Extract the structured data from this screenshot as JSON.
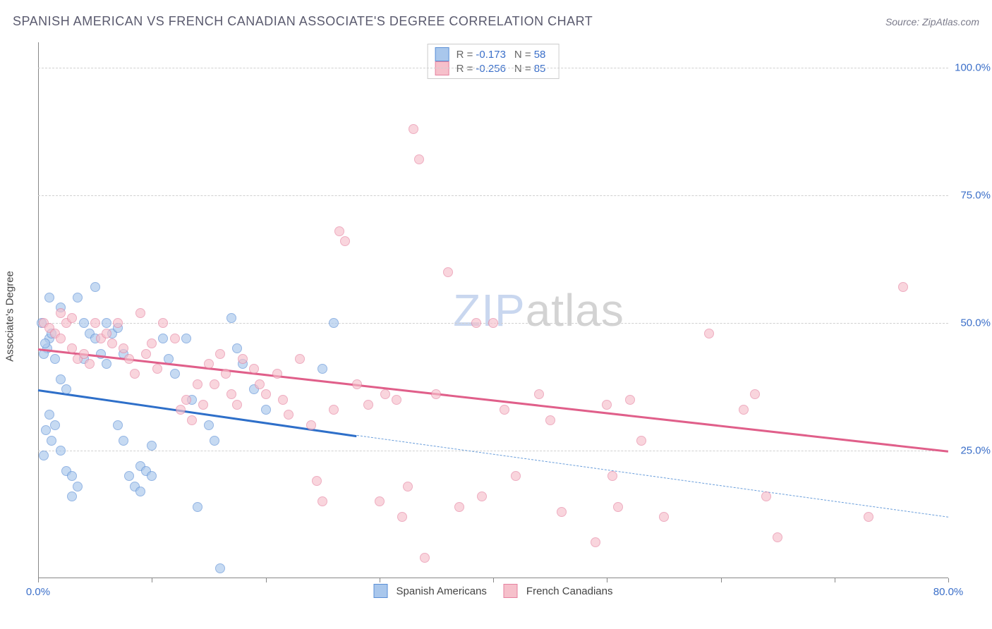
{
  "title": "SPANISH AMERICAN VS FRENCH CANADIAN ASSOCIATE'S DEGREE CORRELATION CHART",
  "source": "Source: ZipAtlas.com",
  "y_axis_label": "Associate's Degree",
  "watermark": {
    "part1": "ZIP",
    "part2": "atlas"
  },
  "chart": {
    "type": "scatter",
    "xlim": [
      0,
      80
    ],
    "ylim": [
      0,
      105
    ],
    "x_ticks": [
      0,
      10,
      20,
      30,
      40,
      50,
      60,
      70,
      80
    ],
    "x_tick_labels": {
      "0": "0.0%",
      "80": "80.0%"
    },
    "y_gridlines": [
      25,
      50,
      75,
      100
    ],
    "y_tick_labels": {
      "25": "25.0%",
      "50": "50.0%",
      "75": "75.0%",
      "100": "100.0%"
    },
    "background_color": "#ffffff",
    "grid_color": "#d0d0d0",
    "axis_color": "#888888",
    "tick_label_color": "#3b6fc9",
    "point_radius": 7,
    "point_opacity": 0.65
  },
  "series": [
    {
      "name": "Spanish Americans",
      "fill_color": "#a9c7ec",
      "stroke_color": "#5b8fd6",
      "trend": {
        "x1": 0,
        "y1": 37,
        "x2": 28,
        "y2": 28,
        "color": "#2e6fc9",
        "width": 2.5
      },
      "trend_ext": {
        "x1": 28,
        "y1": 28,
        "x2": 80,
        "y2": 12,
        "color": "#6a9edb",
        "dashed": true
      },
      "points": [
        [
          0.8,
          45
        ],
        [
          0.5,
          44
        ],
        [
          1,
          47
        ],
        [
          0.6,
          46
        ],
        [
          1.2,
          48
        ],
        [
          0.3,
          50
        ],
        [
          1.5,
          43
        ],
        [
          1,
          55
        ],
        [
          2,
          53
        ],
        [
          2,
          39
        ],
        [
          2.5,
          37
        ],
        [
          1,
          32
        ],
        [
          1.5,
          30
        ],
        [
          0.7,
          29
        ],
        [
          1.2,
          27
        ],
        [
          2,
          25
        ],
        [
          0.5,
          24
        ],
        [
          2.5,
          21
        ],
        [
          3,
          20
        ],
        [
          3.5,
          18
        ],
        [
          3,
          16
        ],
        [
          4,
          43
        ],
        [
          4.5,
          48
        ],
        [
          4,
          50
        ],
        [
          3.5,
          55
        ],
        [
          5,
          57
        ],
        [
          5,
          47
        ],
        [
          5.5,
          44
        ],
        [
          6,
          42
        ],
        [
          6.5,
          48
        ],
        [
          6,
          50
        ],
        [
          7,
          49
        ],
        [
          7.5,
          44
        ],
        [
          7,
          30
        ],
        [
          7.5,
          27
        ],
        [
          8,
          20
        ],
        [
          8.5,
          18
        ],
        [
          9,
          17
        ],
        [
          9,
          22
        ],
        [
          9.5,
          21
        ],
        [
          10,
          26
        ],
        [
          10,
          20
        ],
        [
          11,
          47
        ],
        [
          11.5,
          43
        ],
        [
          12,
          40
        ],
        [
          13,
          47
        ],
        [
          13.5,
          35
        ],
        [
          14,
          14
        ],
        [
          15,
          30
        ],
        [
          15.5,
          27
        ],
        [
          16,
          2
        ],
        [
          17,
          51
        ],
        [
          17.5,
          45
        ],
        [
          18,
          42
        ],
        [
          19,
          37
        ],
        [
          20,
          33
        ],
        [
          25,
          41
        ],
        [
          26,
          50
        ]
      ]
    },
    {
      "name": "French Canadians",
      "fill_color": "#f6c0cb",
      "stroke_color": "#e682a0",
      "trend": {
        "x1": 0,
        "y1": 45,
        "x2": 80,
        "y2": 25,
        "color": "#e05f8a",
        "width": 2.5
      },
      "points": [
        [
          0.5,
          50
        ],
        [
          1,
          49
        ],
        [
          1.5,
          48
        ],
        [
          2,
          47
        ],
        [
          2,
          52
        ],
        [
          2.5,
          50
        ],
        [
          3,
          45
        ],
        [
          3.5,
          43
        ],
        [
          3,
          51
        ],
        [
          4,
          44
        ],
        [
          4.5,
          42
        ],
        [
          5,
          50
        ],
        [
          5.5,
          47
        ],
        [
          6,
          48
        ],
        [
          6.5,
          46
        ],
        [
          7,
          50
        ],
        [
          7.5,
          45
        ],
        [
          8,
          43
        ],
        [
          8.5,
          40
        ],
        [
          9,
          52
        ],
        [
          9.5,
          44
        ],
        [
          10,
          46
        ],
        [
          10.5,
          41
        ],
        [
          11,
          50
        ],
        [
          12,
          47
        ],
        [
          12.5,
          33
        ],
        [
          13,
          35
        ],
        [
          13.5,
          31
        ],
        [
          14,
          38
        ],
        [
          14.5,
          34
        ],
        [
          15,
          42
        ],
        [
          15.5,
          38
        ],
        [
          16,
          44
        ],
        [
          16.5,
          40
        ],
        [
          17,
          36
        ],
        [
          17.5,
          34
        ],
        [
          18,
          43
        ],
        [
          19,
          41
        ],
        [
          19.5,
          38
        ],
        [
          20,
          36
        ],
        [
          21,
          40
        ],
        [
          21.5,
          35
        ],
        [
          22,
          32
        ],
        [
          23,
          43
        ],
        [
          24,
          30
        ],
        [
          24.5,
          19
        ],
        [
          25,
          15
        ],
        [
          26,
          33
        ],
        [
          26.5,
          68
        ],
        [
          27,
          66
        ],
        [
          28,
          38
        ],
        [
          29,
          34
        ],
        [
          30,
          15
        ],
        [
          30.5,
          36
        ],
        [
          31.5,
          35
        ],
        [
          32,
          12
        ],
        [
          32.5,
          18
        ],
        [
          33,
          88
        ],
        [
          33.5,
          82
        ],
        [
          34,
          4
        ],
        [
          35,
          36
        ],
        [
          36,
          60
        ],
        [
          37,
          14
        ],
        [
          38.5,
          50
        ],
        [
          39,
          16
        ],
        [
          40,
          50
        ],
        [
          41,
          33
        ],
        [
          42,
          20
        ],
        [
          44,
          36
        ],
        [
          45,
          31
        ],
        [
          46,
          13
        ],
        [
          49,
          7
        ],
        [
          50,
          34
        ],
        [
          50.5,
          20
        ],
        [
          51,
          14
        ],
        [
          52,
          35
        ],
        [
          53,
          27
        ],
        [
          55,
          12
        ],
        [
          59,
          48
        ],
        [
          62,
          33
        ],
        [
          63,
          36
        ],
        [
          64,
          16
        ],
        [
          65,
          8
        ],
        [
          73,
          12
        ],
        [
          76,
          57
        ]
      ]
    }
  ],
  "stats_box": [
    {
      "swatch_fill": "#a9c7ec",
      "swatch_stroke": "#5b8fd6",
      "r_label": "R =",
      "r_value": "-0.173",
      "n_label": "N =",
      "n_value": "58"
    },
    {
      "swatch_fill": "#f6c0cb",
      "swatch_stroke": "#e682a0",
      "r_label": "R =",
      "r_value": "-0.256",
      "n_label": "N =",
      "n_value": "85"
    }
  ],
  "legend_bottom": [
    {
      "swatch_fill": "#a9c7ec",
      "swatch_stroke": "#5b8fd6",
      "label": "Spanish Americans"
    },
    {
      "swatch_fill": "#f6c0cb",
      "swatch_stroke": "#e682a0",
      "label": "French Canadians"
    }
  ]
}
